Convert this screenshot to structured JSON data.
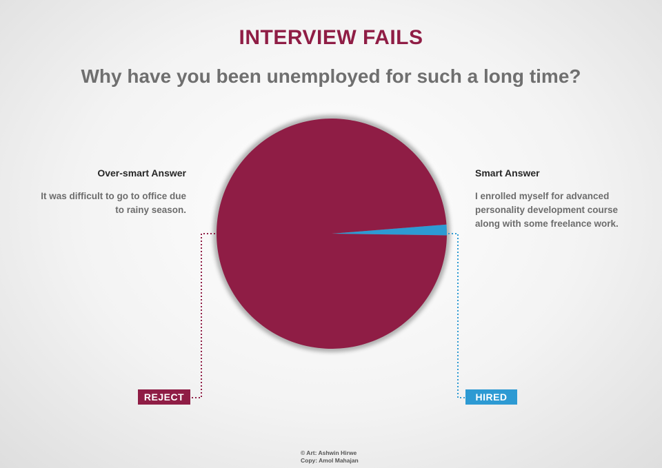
{
  "header": {
    "title": "INTERVIEW FAILS",
    "subtitle": "Why have you been unemployed for such a long time?"
  },
  "left_block": {
    "heading": "Over-smart Answer",
    "text_lines": [
      "It  was difficult to go to office due",
      "to rainy season."
    ]
  },
  "right_block": {
    "heading": "Smart Answer",
    "text_lines": [
      "I enrolled myself for advanced",
      "personality development course",
      "along with some freelance work."
    ]
  },
  "labels": {
    "reject": "REJECT",
    "hired": "HIRED"
  },
  "credits": {
    "art": "© Art: Ashwin Hirwe",
    "copy": "Copy: Amol Mahajan"
  },
  "colors": {
    "maroon": "#8f1d45",
    "blue": "#2d9ad3"
  },
  "chart_data": {
    "type": "pie",
    "title": "INTERVIEW FAILS",
    "slices": [
      {
        "label": "Over-smart Answer",
        "outcome": "REJECT",
        "percent": 98.5,
        "color": "#8f1d45"
      },
      {
        "label": "Smart Answer",
        "outcome": "HIRED",
        "percent": 1.5,
        "color": "#2d9ad3"
      }
    ]
  }
}
